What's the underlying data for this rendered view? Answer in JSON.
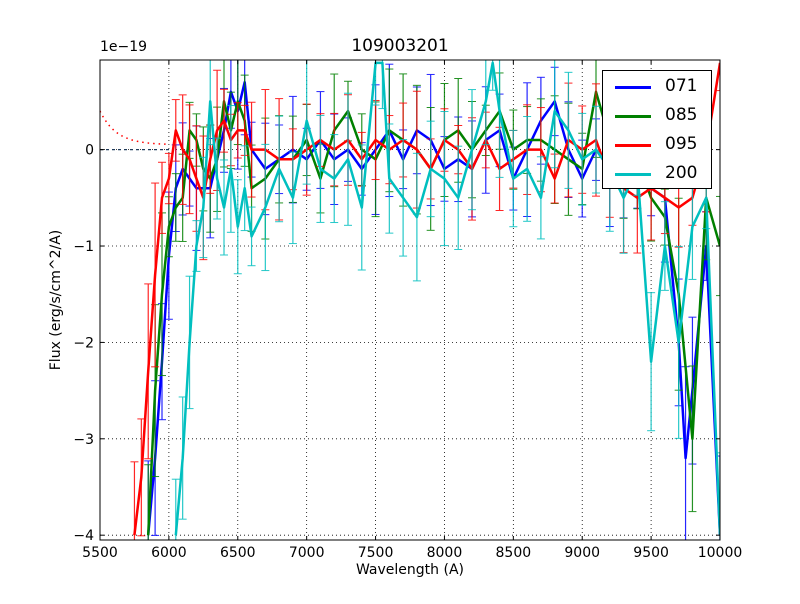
{
  "chart_data": {
    "type": "line",
    "title": "109003201",
    "xlabel": "Wavelength (A)",
    "ylabel": "Flux (erg/s/cm^2/A)",
    "y_offset_label": "1e−19",
    "xlim": [
      5500,
      10000
    ],
    "ylim": [
      -4.05,
      0.93
    ],
    "y_scale_factor": 1e-19,
    "xticks": [
      "5500",
      "6000",
      "6500",
      "7000",
      "7500",
      "8000",
      "8500",
      "9000",
      "9500",
      "10000"
    ],
    "yticks": [
      "−4",
      "−3",
      "−2",
      "−1",
      "0"
    ],
    "grid": true,
    "grid_style": "dotted",
    "legend_position": "upper right",
    "error_bars": true,
    "series": [
      {
        "name": "071",
        "color": "#0000ff",
        "x": [
          5850,
          5900,
          5950,
          6000,
          6050,
          6100,
          6150,
          6200,
          6300,
          6400,
          6450,
          6500,
          6550,
          6600,
          6700,
          6800,
          6900,
          7000,
          7100,
          7200,
          7300,
          7400,
          7500,
          7600,
          7700,
          7800,
          7900,
          8000,
          8100,
          8200,
          8300,
          8400,
          8500,
          8600,
          8700,
          8800,
          8900,
          9000,
          9100,
          9200,
          9300,
          9400,
          9500,
          9600,
          9700,
          9750,
          9800,
          9900,
          10000
        ],
        "y": [
          -4.0,
          -3.2,
          -2.2,
          -1.1,
          -0.4,
          -0.2,
          -0.3,
          -0.4,
          -0.4,
          0.2,
          0.6,
          0.4,
          0.7,
          0.0,
          -0.2,
          -0.1,
          0.0,
          -0.1,
          0.1,
          -0.1,
          0.0,
          -0.2,
          0.0,
          0.2,
          -0.1,
          0.2,
          0.1,
          -0.2,
          -0.1,
          -0.2,
          0.1,
          0.2,
          -0.3,
          0.0,
          0.3,
          0.5,
          0.0,
          -0.3,
          0.0,
          -0.2,
          -0.3,
          -0.2,
          -0.4,
          -0.5,
          -2.0,
          -3.2,
          -2.5,
          -1.0,
          -4.0
        ]
      },
      {
        "name": "085",
        "color": "#008000",
        "x": [
          5850,
          5900,
          5950,
          6000,
          6050,
          6100,
          6150,
          6200,
          6250,
          6300,
          6350,
          6400,
          6450,
          6500,
          6550,
          6600,
          6700,
          6800,
          6900,
          7000,
          7100,
          7200,
          7300,
          7400,
          7500,
          7600,
          7700,
          7800,
          7900,
          8000,
          8100,
          8200,
          8300,
          8400,
          8500,
          8600,
          8700,
          8800,
          8900,
          9000,
          9100,
          9200,
          9300,
          9400,
          9500,
          9600,
          9700,
          9800,
          9900,
          10000
        ],
        "y": [
          -4.0,
          -2.5,
          -1.5,
          -0.8,
          -0.6,
          -0.5,
          0.2,
          0.1,
          -0.2,
          -0.3,
          -0.1,
          0.5,
          0.2,
          0.5,
          0.3,
          -0.4,
          -0.3,
          -0.1,
          -0.1,
          0.1,
          -0.3,
          0.2,
          0.4,
          0.0,
          -0.1,
          0.2,
          0.1,
          0.0,
          -0.2,
          0.1,
          0.2,
          0.0,
          0.2,
          0.4,
          0.0,
          0.1,
          0.1,
          0.0,
          -0.1,
          -0.2,
          0.6,
          0.1,
          -0.3,
          -0.1,
          -0.5,
          -0.7,
          -1.5,
          -3.0,
          -0.5,
          -1.0
        ]
      },
      {
        "name": "095",
        "color": "#ff0000",
        "x": [
          5750,
          5800,
          5850,
          5900,
          5950,
          6000,
          6050,
          6100,
          6150,
          6200,
          6250,
          6300,
          6350,
          6400,
          6450,
          6500,
          6550,
          6600,
          6700,
          6800,
          6900,
          7000,
          7100,
          7200,
          7300,
          7400,
          7500,
          7600,
          7700,
          7800,
          7900,
          8000,
          8100,
          8200,
          8300,
          8400,
          8500,
          8600,
          8700,
          8800,
          8900,
          9000,
          9100,
          9200,
          9300,
          9400,
          9500,
          9600,
          9700,
          9800,
          9900,
          10000
        ],
        "y": [
          -4.0,
          -3.4,
          -2.3,
          -1.3,
          -0.5,
          -0.3,
          0.2,
          0.0,
          -0.1,
          -0.3,
          -0.5,
          -0.1,
          0.2,
          0.3,
          0.1,
          0.2,
          0.2,
          0.0,
          0.0,
          -0.1,
          -0.1,
          0.0,
          0.1,
          0.0,
          0.1,
          -0.1,
          0.1,
          0.0,
          0.1,
          0.0,
          -0.2,
          0.1,
          0.0,
          -0.2,
          0.1,
          -0.2,
          -0.1,
          0.0,
          0.0,
          -0.3,
          0.1,
          0.0,
          0.1,
          -0.3,
          -0.4,
          -0.5,
          -0.4,
          -0.5,
          -0.6,
          -0.5,
          0.0,
          0.9
        ]
      },
      {
        "name": "200",
        "color": "#00bfbf",
        "x": [
          6050,
          6100,
          6150,
          6200,
          6250,
          6300,
          6350,
          6400,
          6450,
          6500,
          6550,
          6600,
          6700,
          6800,
          6900,
          7000,
          7100,
          7200,
          7300,
          7400,
          7500,
          7550,
          7600,
          7700,
          7800,
          7900,
          8000,
          8100,
          8200,
          8300,
          8350,
          8400,
          8500,
          8600,
          8700,
          8800,
          8900,
          9000,
          9100,
          9200,
          9300,
          9400,
          9500,
          9600,
          9700,
          9800,
          9900,
          10000
        ],
        "y": [
          -4.0,
          -3.2,
          -2.0,
          -1.0,
          -0.6,
          0.5,
          -0.3,
          -0.6,
          -0.2,
          -0.8,
          -0.4,
          -0.9,
          -0.6,
          -0.2,
          -0.5,
          0.3,
          -0.2,
          -0.3,
          -0.1,
          -0.6,
          0.9,
          0.9,
          -0.3,
          -0.5,
          -0.7,
          -0.2,
          -0.3,
          -0.5,
          0.0,
          0.5,
          0.9,
          0.4,
          -0.3,
          -0.2,
          -0.5,
          0.4,
          0.2,
          -0.1,
          0.0,
          -0.2,
          -0.5,
          -0.2,
          -2.2,
          -1.0,
          -2.0,
          -0.8,
          -0.5,
          -4.0
        ]
      }
    ],
    "annotations": [
      {
        "type": "dotted-curve",
        "color": "#ff0000",
        "description": "red dotted model curve decaying from ~0.4 at 5500 to ~0.05 near 6000"
      },
      {
        "type": "dashed-line",
        "color": "#003366",
        "description": "dark dashed zero line from 5500 to ~6000"
      }
    ]
  }
}
